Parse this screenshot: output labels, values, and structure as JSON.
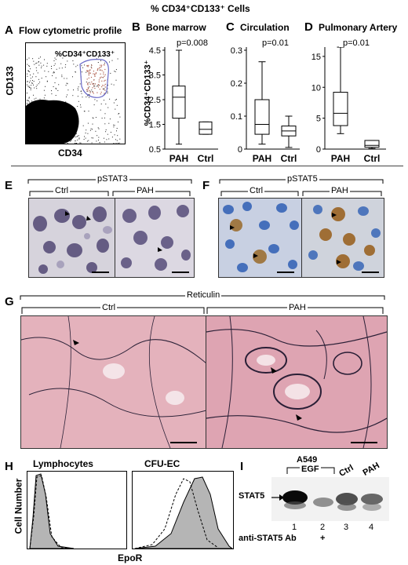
{
  "header": {
    "title": "% CD34⁺CD133⁺ Cells"
  },
  "panel_a": {
    "letter": "A",
    "title": "Flow cytometric profile",
    "y_label": "CD133",
    "x_label": "CD34",
    "gate_label": "%CD34⁺CD133⁺"
  },
  "chart_data": [
    {
      "type": "box",
      "panel": "B",
      "title": "Bone marrow",
      "ylabel": "%CD34⁺CD133⁺",
      "ylim": [
        0.5,
        4.5
      ],
      "yticks": [
        "0.5",
        "1.5",
        "2.5",
        "3.5",
        "4.5"
      ],
      "categories": [
        "PAH",
        "Ctrl"
      ],
      "boxes": [
        {
          "name": "PAH",
          "min": 0.7,
          "q1": 1.75,
          "median": 2.6,
          "q3": 3.05,
          "max": 4.5
        },
        {
          "name": "Ctrl",
          "min": 1.1,
          "q1": 1.1,
          "median": 1.3,
          "q3": 1.6,
          "max": 1.6
        }
      ],
      "annotation": "p=0.008"
    },
    {
      "type": "box",
      "panel": "C",
      "title": "Circulation",
      "ylim": [
        0,
        0.3
      ],
      "yticks": [
        "0",
        "0.1",
        "0.2",
        "0.3"
      ],
      "categories": [
        "PAH",
        "Ctrl"
      ],
      "boxes": [
        {
          "name": "PAH",
          "min": 0.015,
          "q1": 0.045,
          "median": 0.075,
          "q3": 0.15,
          "max": 0.265
        },
        {
          "name": "Ctrl",
          "min": 0.005,
          "q1": 0.04,
          "median": 0.055,
          "q3": 0.07,
          "max": 0.1
        }
      ],
      "annotation": "p=0.01"
    },
    {
      "type": "box",
      "panel": "D",
      "title": "Pulmonary Artery",
      "ylim": [
        0,
        16
      ],
      "yticks": [
        "0",
        "5",
        "10",
        "15"
      ],
      "categories": [
        "PAH",
        "Ctrl"
      ],
      "boxes": [
        {
          "name": "PAH",
          "min": 2.5,
          "q1": 3.8,
          "median": 5.8,
          "q3": 9.2,
          "max": 16.5
        },
        {
          "name": "Ctrl",
          "min": 0.1,
          "q1": 0.3,
          "median": 0.6,
          "q3": 1.4,
          "max": 1.4
        }
      ],
      "annotation": "p=0.01"
    }
  ],
  "panel_e": {
    "letter": "E",
    "group": "pSTAT3",
    "left": "Ctrl",
    "right": "PAH"
  },
  "panel_f": {
    "letter": "F",
    "group": "pSTAT5",
    "left": "Ctrl",
    "right": "PAH"
  },
  "panel_g": {
    "letter": "G",
    "group": "Reticulin",
    "left": "Ctrl",
    "right": "PAH"
  },
  "panel_h": {
    "letter": "H",
    "left_title": "Lymphocytes",
    "right_title": "CFU-EC",
    "y_label": "Cell Number",
    "x_label": "EpoR"
  },
  "panel_i": {
    "letter": "I",
    "cell_line": "A549",
    "treatment": "EGF",
    "lane_ctrl": "Ctrl",
    "lane_pah": "PAH",
    "band_label": "STAT5",
    "lanes": [
      "1",
      "2",
      "3",
      "4"
    ],
    "antibody_label": "anti-STAT5 Ab",
    "antibody_lane2": "+"
  }
}
